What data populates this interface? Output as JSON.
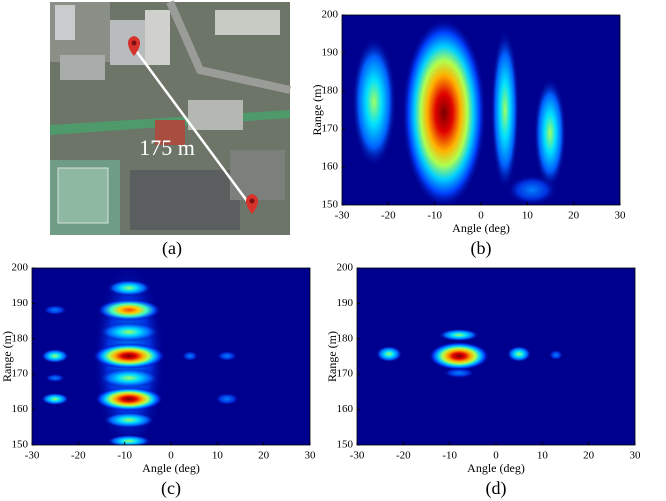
{
  "panel_a": {
    "distance_label": "175 m",
    "caption": "(a)"
  },
  "chart_data": [
    {
      "type": "heatmap",
      "xlabel": "Angle (deg)",
      "ylabel": "Range (m)",
      "xlim": [
        -30,
        30
      ],
      "ylim": [
        150,
        200
      ],
      "xticks": [
        -30,
        -20,
        -10,
        0,
        10,
        20,
        30
      ],
      "yticks": [
        150,
        160,
        170,
        180,
        190,
        200
      ],
      "caption": "(b)"
    },
    {
      "type": "heatmap",
      "xlabel": "Angle (deg)",
      "ylabel": "Range (m)",
      "xlim": [
        -30,
        30
      ],
      "ylim": [
        150,
        200
      ],
      "xticks": [
        -30,
        -20,
        -10,
        0,
        10,
        20,
        30
      ],
      "yticks": [
        150,
        160,
        170,
        180,
        190,
        200
      ],
      "caption": "(c)"
    },
    {
      "type": "heatmap",
      "xlabel": "Angle (deg)",
      "ylabel": "Range (m)",
      "xlim": [
        -30,
        30
      ],
      "ylim": [
        150,
        200
      ],
      "xticks": [
        -30,
        -20,
        -10,
        0,
        10,
        20,
        30
      ],
      "yticks": [
        150,
        160,
        170,
        180,
        190,
        200
      ],
      "caption": "(d)"
    }
  ]
}
